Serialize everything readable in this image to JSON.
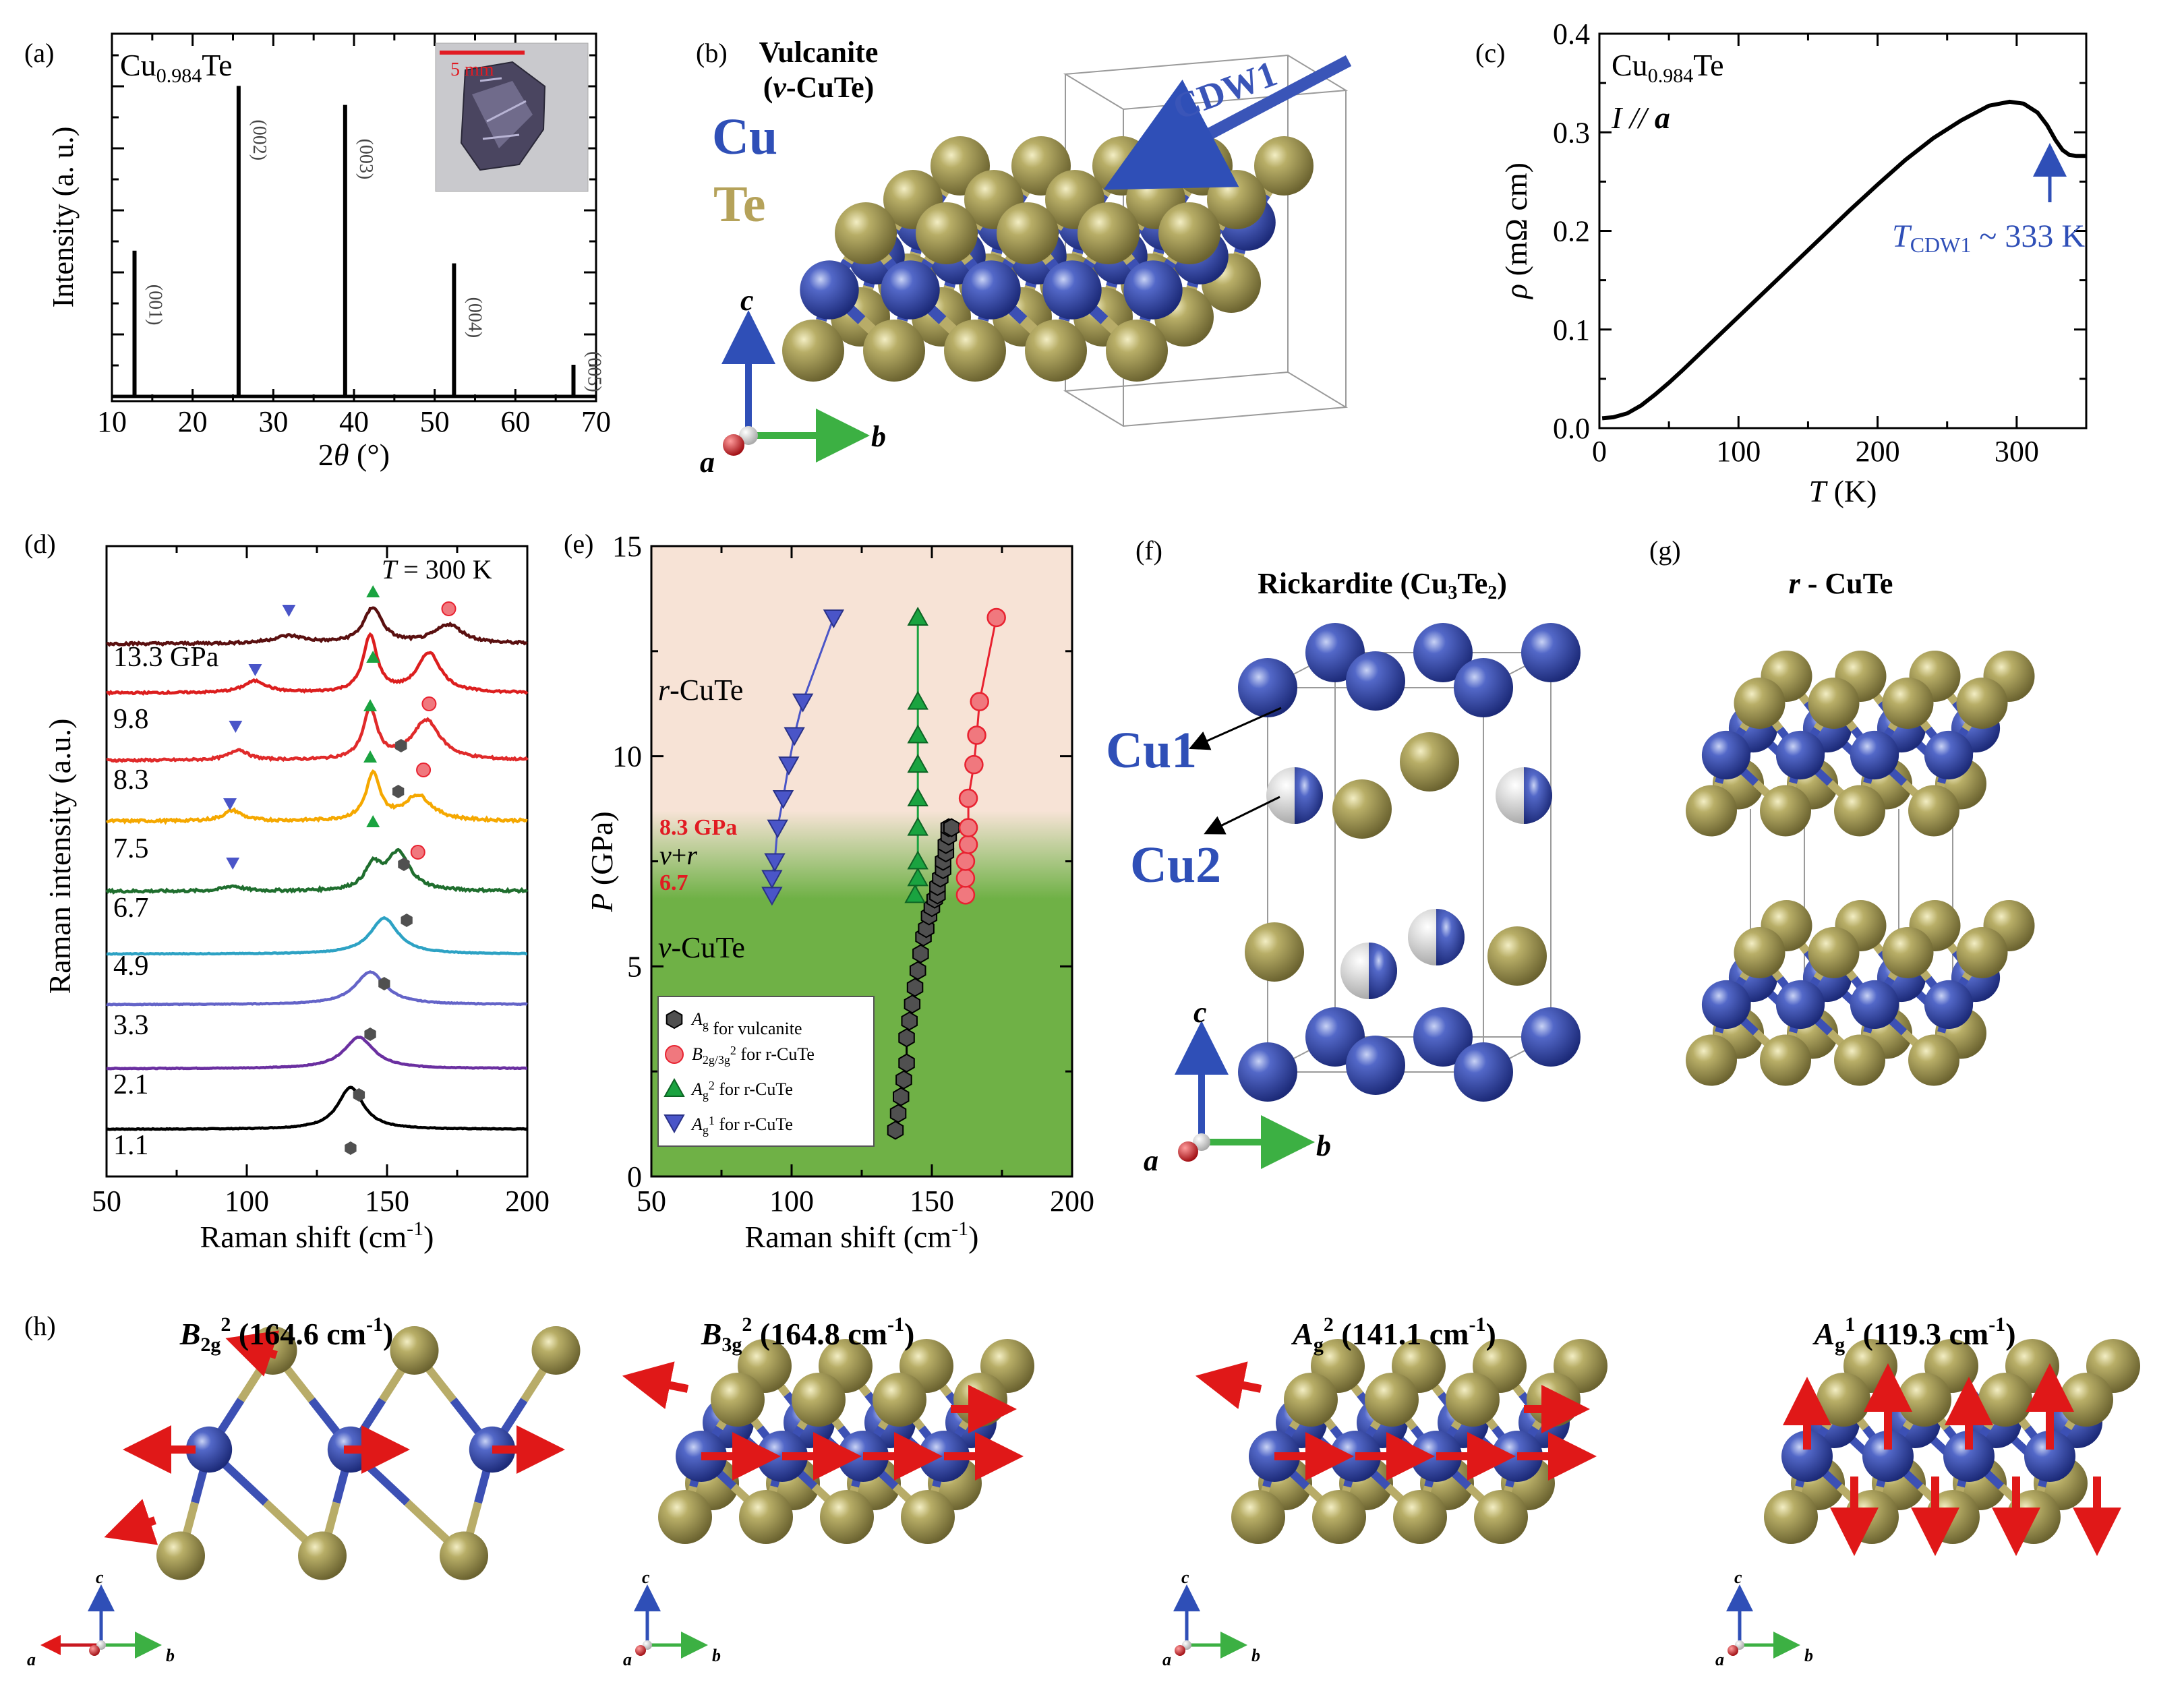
{
  "panel_labels": [
    "(a)",
    "(b)",
    "(c)",
    "(d)",
    "(e)",
    "(f)",
    "(g)",
    "(h)"
  ],
  "colors": {
    "cu": "#2b3f9e",
    "te": "#a39a52",
    "raman_red": "#e82230",
    "raman_green": "#1aa340",
    "vulcanite_marker": "#505050",
    "cdw_arrow": "#3a55b8",
    "axis_a": "#c81820",
    "axis_b": "#3cb043",
    "axis_c": "#2f4fb7",
    "region_r": "#f7e3d6",
    "region_v": "#6fb146",
    "label_red": "#e11b22",
    "label_blue": "#2f4fb7"
  },
  "panel_a": {
    "sample": {
      "base": "Cu",
      "sub": "0.984",
      "tail": "Te"
    },
    "inset_scale": "5 mm",
    "xlabel": {
      "pre": "2",
      "theta": "θ",
      "post": " (°)"
    },
    "ylabel": "Intensity (a. u.)",
    "x_ticks": [
      "10",
      "20",
      "30",
      "40",
      "50",
      "60",
      "70"
    ],
    "peak_labels": [
      "(001)",
      "(002)",
      "(003)",
      "(004)",
      "(005)"
    ]
  },
  "panel_b": {
    "title1": "Vulcanite",
    "title2": {
      "open": "(",
      "v": "v",
      "rest": "-CuTe)"
    },
    "cu": "Cu",
    "te": "Te",
    "cdw": "CDW1",
    "axes": {
      "a": "a",
      "b": "b",
      "c": "c"
    }
  },
  "panel_c": {
    "sample": {
      "base": "Cu",
      "sub": "0.984",
      "tail": "Te"
    },
    "current": {
      "i": "I",
      "mid": " // ",
      "a": "a"
    },
    "annotation": {
      "t": "T",
      "sub": "CDW1",
      "rest": " ~ 333 K"
    },
    "xlabel": {
      "t": "T",
      "rest": " (K)"
    },
    "ylabel": {
      "rho": "ρ",
      "rest": " (mΩ cm)"
    },
    "x_ticks": [
      "0",
      "100",
      "200",
      "300"
    ],
    "y_ticks": [
      "0.0",
      "0.1",
      "0.2",
      "0.3",
      "0.4"
    ]
  },
  "panel_d": {
    "temp": {
      "t": "T",
      "rest": " = 300 K"
    },
    "ylabel": "Raman intensity (a.u.)",
    "xlabel": {
      "pre": "Raman shift (cm",
      "sup": "-1",
      "post": ")"
    },
    "x_ticks": [
      "50",
      "100",
      "150",
      "200"
    ],
    "pressures": [
      "13.3 GPa",
      "9.8",
      "8.3",
      "7.5",
      "6.7",
      "4.9",
      "3.3",
      "2.1",
      "1.1"
    ]
  },
  "panel_e": {
    "xlabel": {
      "pre": "Raman shift (cm",
      "sup": "-1",
      "post": ")"
    },
    "ylabel": {
      "p": "P",
      "rest": " (GPa)"
    },
    "x_ticks": [
      "50",
      "100",
      "150",
      "200"
    ],
    "y_ticks": [
      "0",
      "5",
      "10",
      "15"
    ],
    "region_r": {
      "r": "r",
      "rest": "-CuTe"
    },
    "region_vr": {
      "v": "v",
      "mid": "+",
      "r": "r"
    },
    "region_v": {
      "v": "v",
      "rest": "-CuTe"
    },
    "p_high": "8.3 GPa",
    "p_low": "6.7",
    "legend": [
      {
        "sym": "A",
        "sub": "g",
        "sup": "",
        "rest": " for vulcanite"
      },
      {
        "sym": "B",
        "sub": "2g/3g",
        "sup": "2",
        "rest": " for r-CuTe"
      },
      {
        "sym": "A",
        "sub": "g",
        "sup": "2",
        "rest": " for r-CuTe"
      },
      {
        "sym": "A",
        "sub": "g",
        "sup": "1",
        "rest": " for r-CuTe"
      }
    ]
  },
  "panel_f": {
    "title": {
      "pre": "Rickardite (Cu",
      "s1": "3",
      "mid": "Te",
      "s2": "2",
      "post": ")"
    },
    "cu1": "Cu1",
    "cu2": "Cu2",
    "axes": {
      "a": "a",
      "b": "b",
      "c": "c"
    }
  },
  "panel_g": {
    "title": {
      "r": "r",
      "rest": " - CuTe"
    }
  },
  "panel_h": {
    "modes": [
      {
        "sym": "B",
        "sub": "2g",
        "sup": "2",
        "rest": " (164.6 cm",
        "sup2": "-1",
        "end": ")"
      },
      {
        "sym": "B",
        "sub": "3g",
        "sup": "2",
        "rest": " (164.8 cm",
        "sup2": "-1",
        "end": ")"
      },
      {
        "sym": "A",
        "sub": "g",
        "sup": "2",
        "rest": " (141.1 cm",
        "sup2": "-1",
        "end": ")"
      },
      {
        "sym": "A",
        "sub": "g",
        "sup": "1",
        "rest": " (119.3 cm",
        "sup2": "-1",
        "end": ")"
      }
    ],
    "axes": {
      "a": "a",
      "b": "b",
      "c": "c"
    }
  },
  "chart_data": [
    {
      "type": "bar",
      "panel": "a",
      "xlabel": "2θ (°)",
      "ylabel": "Intensity (a. u.)",
      "xlim": [
        10,
        70
      ],
      "categories": [
        "(001)",
        "(002)",
        "(003)",
        "(004)",
        "(005)"
      ],
      "x": [
        12.8,
        25.7,
        38.9,
        52.4,
        67.2
      ],
      "values": [
        0.46,
        0.98,
        0.92,
        0.42,
        0.1
      ]
    },
    {
      "type": "line",
      "panel": "c",
      "xlabel": "T (K)",
      "ylabel": "ρ (mΩ cm)",
      "xlim": [
        0,
        350
      ],
      "ylim": [
        0,
        0.4
      ],
      "x": [
        2,
        10,
        20,
        30,
        40,
        50,
        60,
        80,
        100,
        120,
        140,
        160,
        180,
        200,
        220,
        240,
        260,
        280,
        295,
        305,
        315,
        322,
        328,
        333,
        338,
        343,
        350
      ],
      "y": [
        0.01,
        0.011,
        0.015,
        0.023,
        0.034,
        0.046,
        0.059,
        0.086,
        0.113,
        0.14,
        0.167,
        0.194,
        0.221,
        0.247,
        0.272,
        0.294,
        0.312,
        0.327,
        0.331,
        0.329,
        0.32,
        0.307,
        0.292,
        0.282,
        0.277,
        0.276,
        0.276
      ]
    },
    {
      "type": "line",
      "panel": "d",
      "xlabel": "Raman shift (cm-1)",
      "ylabel": "Raman intensity (a.u.)",
      "xlim": [
        50,
        200
      ],
      "series": [
        {
          "name": "1.1",
          "color": "#000000",
          "peaks": [
            [
              137,
              1.0,
              5.5
            ]
          ],
          "noise": 0.008
        },
        {
          "name": "2.1",
          "color": "#6a2fa0",
          "peaks": [
            [
              140,
              0.75,
              6.5
            ]
          ],
          "noise": 0.008
        },
        {
          "name": "3.3",
          "color": "#6464c8",
          "peaks": [
            [
              144,
              0.78,
              6.5
            ]
          ],
          "noise": 0.008
        },
        {
          "name": "4.9",
          "color": "#2da2c4",
          "peaks": [
            [
              149,
              0.86,
              6
            ]
          ],
          "noise": 0.008
        },
        {
          "name": "6.7",
          "color": "#1f6e2e",
          "peaks": [
            [
              95,
              0.12,
              4
            ],
            [
              145,
              0.55,
              3.5
            ],
            [
              154,
              0.9,
              5
            ]
          ],
          "noise": 0.03
        },
        {
          "name": "7.5",
          "color": "#f5a800",
          "peaks": [
            [
              95,
              0.25,
              4
            ],
            [
              145,
              1.1,
              3
            ],
            [
              161,
              0.6,
              6
            ]
          ],
          "noise": 0.03
        },
        {
          "name": "8.3",
          "color": "#e02a2a",
          "peaks": [
            [
              97,
              0.25,
              4
            ],
            [
              144,
              1.2,
              3
            ],
            [
              164,
              0.95,
              6
            ]
          ],
          "noise": 0.025
        },
        {
          "name": "9.8",
          "color": "#dc1e1e",
          "peaks": [
            [
              103,
              0.28,
              5
            ],
            [
              144,
              1.35,
              3
            ],
            [
              165,
              0.95,
              5
            ]
          ],
          "noise": 0.022
        },
        {
          "name": "13.3 GPa",
          "color": "#5a1010",
          "peaks": [
            [
              115,
              0.18,
              7
            ],
            [
              145,
              0.85,
              4
            ],
            [
              172,
              0.45,
              6
            ]
          ],
          "noise": 0.03
        }
      ]
    },
    {
      "type": "scatter",
      "panel": "e",
      "xlabel": "Raman shift (cm-1)",
      "ylabel": "P (GPa)",
      "xlim": [
        50,
        200
      ],
      "ylim": [
        0,
        15
      ],
      "series": [
        {
          "name": "Ag for vulcanite",
          "marker": "hexagon",
          "color": "#505050",
          "x": [
            137,
            138,
            139,
            140,
            141,
            141,
            142,
            143,
            144,
            145,
            146,
            147,
            148,
            149,
            150,
            151,
            152,
            152,
            153,
            154,
            154,
            155,
            155,
            156,
            156,
            157
          ],
          "y": [
            1.1,
            1.5,
            1.9,
            2.3,
            2.7,
            3.3,
            3.7,
            4.1,
            4.5,
            4.9,
            5.3,
            5.7,
            5.9,
            6.2,
            6.4,
            6.6,
            6.7,
            6.9,
            7.1,
            7.3,
            7.5,
            7.7,
            7.9,
            8.1,
            8.3,
            8.3
          ]
        },
        {
          "name": "B2g/3g2 for r-CuTe",
          "marker": "circle",
          "color": "#e82230",
          "x": [
            162,
            162,
            162,
            163,
            163,
            163,
            165,
            166,
            167,
            173
          ],
          "y": [
            6.7,
            7.1,
            7.5,
            7.9,
            8.3,
            9.0,
            9.8,
            10.5,
            11.3,
            13.3
          ]
        },
        {
          "name": "Ag2 for r-CuTe",
          "marker": "triangle-up",
          "color": "#1aa340",
          "x": [
            144,
            145,
            145,
            145,
            145,
            145,
            145,
            145,
            145
          ],
          "y": [
            6.7,
            7.1,
            7.5,
            8.3,
            9.0,
            9.8,
            10.5,
            11.3,
            13.3
          ]
        },
        {
          "name": "Ag1 for r-CuTe",
          "marker": "triangle-down",
          "color": "#4a55c8",
          "x": [
            93,
            93,
            94,
            95,
            97,
            99,
            101,
            104,
            115
          ],
          "y": [
            6.7,
            7.1,
            7.5,
            8.3,
            9.0,
            9.8,
            10.5,
            11.3,
            13.3
          ]
        }
      ]
    }
  ]
}
